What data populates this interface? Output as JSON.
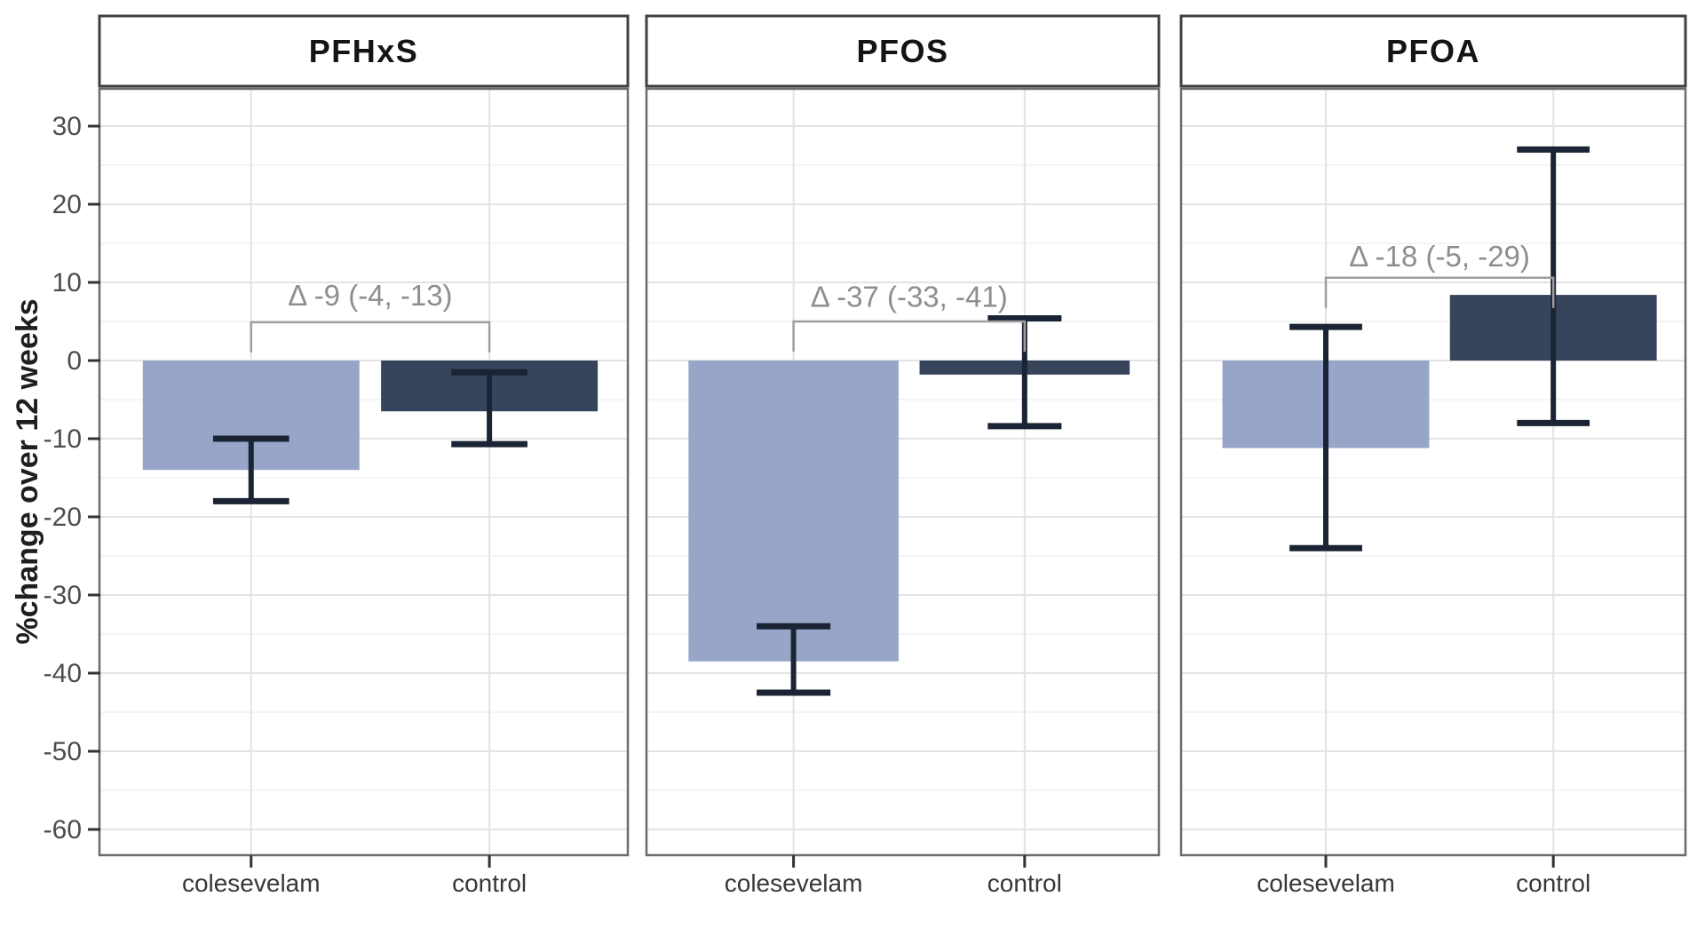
{
  "chart_data": {
    "type": "bar",
    "title": "",
    "ylabel": "%change over 12 weeks",
    "xlabel": "",
    "ylim": [
      -63.5,
      34.8
    ],
    "yticks": [
      30,
      20,
      10,
      0,
      -10,
      -20,
      -30,
      -40,
      -50,
      -60
    ],
    "minor_grid_step": 5,
    "grid": "on",
    "legend": "none",
    "categories": [
      "colesevelam",
      "control"
    ],
    "bar_colors": [
      "#97a6c8",
      "#36445c"
    ],
    "error_color": "#1b2434",
    "annotation_color": "#8e8e8e",
    "bracket_color": "#9e9e9e",
    "facets": [
      {
        "title": "PFHxS",
        "bars": [
          {
            "category": "colesevelam",
            "value": -14,
            "err_low": -18,
            "err_high": -10
          },
          {
            "category": "control",
            "value": -6.5,
            "err_low": -10.7,
            "err_high": -1.5
          }
        ],
        "annotation": {
          "label": "Δ -9 (-4, -13)",
          "delta": -9,
          "ci": [
            -4,
            -13
          ],
          "bracket_y": 4.9,
          "text_y": 8.3
        }
      },
      {
        "title": "PFOS",
        "bars": [
          {
            "category": "colesevelam",
            "value": -38.5,
            "err_low": -42.5,
            "err_high": -34
          },
          {
            "category": "control",
            "value": -1.8,
            "err_low": -8.4,
            "err_high": 5.4
          }
        ],
        "annotation": {
          "label": "Δ -37 (-33, -41)",
          "delta": -37,
          "ci": [
            -33,
            -41
          ],
          "bracket_y": 5.0,
          "text_y": 8.1
        }
      },
      {
        "title": "PFOA",
        "bars": [
          {
            "category": "colesevelam",
            "value": -11.2,
            "err_low": -24,
            "err_high": 4.3
          },
          {
            "category": "control",
            "value": 8.4,
            "err_low": -8,
            "err_high": 27
          }
        ],
        "annotation": {
          "label": "Δ -18 (-5, -29)",
          "delta": -18,
          "ci": [
            -5,
            -29
          ],
          "bracket_y": 10.6,
          "text_y": 13.3
        }
      }
    ]
  }
}
